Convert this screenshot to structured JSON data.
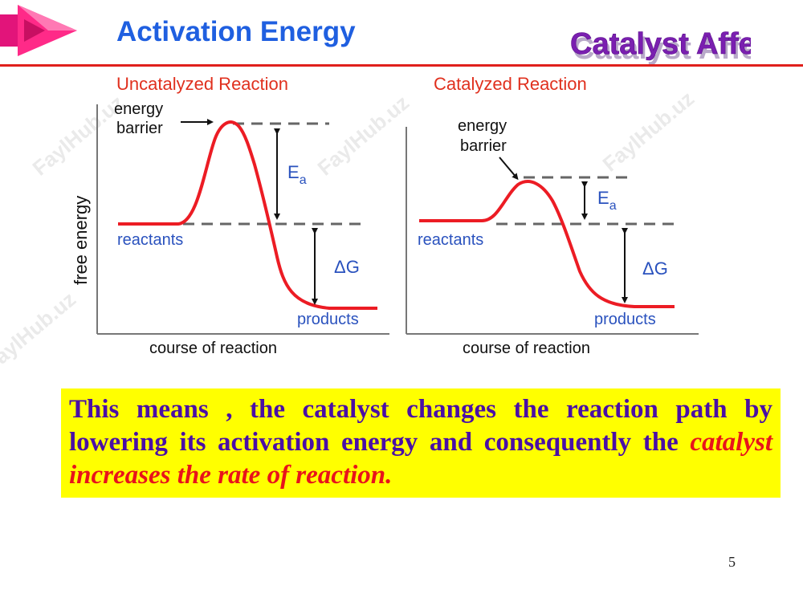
{
  "slide": {
    "title": "Activation Energy",
    "badge": "Catalyst Affect",
    "page_number": "5",
    "watermark": "FaylHub.uz",
    "colors": {
      "title": "#1f5fe0",
      "rule": "#e0201c",
      "badge": "#7a1fb0",
      "curve": "#ec1c24",
      "label_blue": "#2a52be",
      "box_bg": "#ffff00",
      "body_text": "#4a0fa6",
      "highlight": "#e8131b"
    }
  },
  "diagrams": {
    "y_axis_label": "free energy",
    "x_axis_label": "course of reaction",
    "left": {
      "title": "Uncatalyzed Reaction",
      "barrier_label_1": "energy",
      "barrier_label_2": "barrier",
      "ea_label": "E",
      "ea_sub": "a",
      "dg_label": "ΔG",
      "reactants_label": "reactants",
      "products_label": "products"
    },
    "right": {
      "title": "Catalyzed Reaction",
      "barrier_label_1": "energy",
      "barrier_label_2": "barrier",
      "ea_label": "E",
      "ea_sub": "a",
      "dg_label": "ΔG",
      "reactants_label": "reactants",
      "products_label": "products"
    }
  },
  "explanation": {
    "text_before": "This means , the catalyst changes the reaction path by lowering its activation energy and consequently the ",
    "text_highlight": "catalyst increases the rate of reaction."
  }
}
